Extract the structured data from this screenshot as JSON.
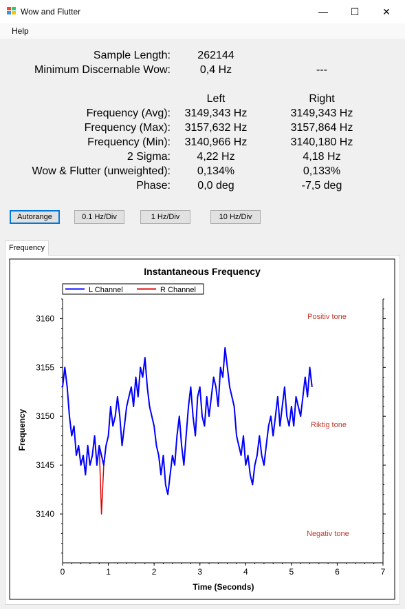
{
  "window": {
    "title": "Wow and Flutter",
    "minimize": "—",
    "maximize": "☐",
    "close": "✕"
  },
  "menu": {
    "help": "Help"
  },
  "stats": {
    "sample_length_label": "Sample Length:",
    "sample_length_value": "262144",
    "min_wow_label": "Minimum Discernable Wow:",
    "min_wow_value": "0,4 Hz",
    "min_wow_right": "---",
    "col_left": "Left",
    "col_right": "Right",
    "rows": [
      {
        "label": "Frequency (Avg):",
        "left": "3149,343 Hz",
        "right": "3149,343 Hz"
      },
      {
        "label": "Frequency (Max):",
        "left": "3157,632 Hz",
        "right": "3157,864 Hz"
      },
      {
        "label": "Frequency (Min):",
        "left": "3140,966 Hz",
        "right": "3140,180 Hz"
      },
      {
        "label": "2 Sigma:",
        "left": "4,22 Hz",
        "right": "4,18 Hz"
      },
      {
        "label": "Wow & Flutter (unweighted):",
        "left": "0,134%",
        "right": "0,133%"
      },
      {
        "label": "Phase:",
        "left": "0,0 deg",
        "right": "-7,5 deg"
      }
    ]
  },
  "buttons": {
    "autorange": "Autorange",
    "div01": "0.1 Hz/Div",
    "div1": "1 Hz/Div",
    "div10": "10 Hz/Div"
  },
  "tabs": {
    "frequency": "Frequency"
  },
  "chart_data": {
    "type": "line",
    "title": "Instantaneous Frequency",
    "xlabel": "Time (Seconds)",
    "ylabel": "Frequency",
    "xlim": [
      0,
      7
    ],
    "ylim": [
      3135,
      3162
    ],
    "x_ticks": [
      "0",
      "1",
      "2",
      "3",
      "4",
      "5",
      "6",
      "7"
    ],
    "y_ticks": [
      "3140",
      "3145",
      "3150",
      "3155",
      "3160"
    ],
    "legend_position": "top-left",
    "annotations": [
      "Positiv tone",
      "Riktig tone",
      "Negativ tone"
    ],
    "annotation_color": "#c0392b",
    "series": [
      {
        "name": "L Channel",
        "color": "#0000ff",
        "x": [
          0,
          0.05,
          0.1,
          0.15,
          0.2,
          0.25,
          0.3,
          0.35,
          0.4,
          0.45,
          0.5,
          0.55,
          0.6,
          0.65,
          0.7,
          0.75,
          0.8,
          0.85,
          0.9,
          0.95,
          1.0,
          1.05,
          1.1,
          1.15,
          1.2,
          1.25,
          1.3,
          1.35,
          1.4,
          1.45,
          1.5,
          1.55,
          1.6,
          1.65,
          1.7,
          1.75,
          1.8,
          1.85,
          1.9,
          1.95,
          2.0,
          2.05,
          2.1,
          2.15,
          2.2,
          2.25,
          2.3,
          2.35,
          2.4,
          2.45,
          2.5,
          2.55,
          2.6,
          2.65,
          2.7,
          2.75,
          2.8,
          2.85,
          2.9,
          2.95,
          3.0,
          3.05,
          3.1,
          3.15,
          3.2,
          3.25,
          3.3,
          3.35,
          3.4,
          3.45,
          3.5,
          3.55,
          3.6,
          3.65,
          3.7,
          3.75,
          3.8,
          3.85,
          3.9,
          3.95,
          4.0,
          4.05,
          4.1,
          4.15,
          4.2,
          4.25,
          4.3,
          4.35,
          4.4,
          4.45,
          4.5,
          4.55,
          4.6,
          4.65,
          4.7,
          4.75,
          4.8,
          4.85,
          4.9,
          4.95,
          5.0,
          5.05,
          5.1,
          5.15,
          5.2,
          5.25,
          5.3,
          5.35,
          5.4,
          5.45
        ],
        "y": [
          3153,
          3155,
          3153,
          3150,
          3148,
          3149,
          3146,
          3147,
          3145,
          3146,
          3144,
          3147,
          3145,
          3146,
          3148,
          3145,
          3147,
          3146,
          3145,
          3147,
          3148,
          3151,
          3149,
          3150,
          3152,
          3150,
          3147,
          3149,
          3151,
          3152,
          3153,
          3151,
          3154,
          3152,
          3155,
          3154,
          3156,
          3153,
          3151,
          3150,
          3149,
          3147,
          3146,
          3144,
          3146,
          3143,
          3142,
          3144,
          3146,
          3145,
          3148,
          3150,
          3147,
          3145,
          3148,
          3151,
          3153,
          3150,
          3148,
          3152,
          3153,
          3150,
          3149,
          3152,
          3150,
          3152,
          3154,
          3153,
          3151,
          3155,
          3154,
          3157,
          3155,
          3153,
          3152,
          3151,
          3148,
          3147,
          3146,
          3148,
          3145,
          3146,
          3144,
          3143,
          3145,
          3146,
          3148,
          3146,
          3145,
          3147,
          3149,
          3150,
          3148,
          3150,
          3152,
          3149,
          3151,
          3153,
          3150,
          3149,
          3151,
          3149,
          3152,
          3151,
          3150,
          3152,
          3154,
          3152,
          3155,
          3153
        ]
      },
      {
        "name": "R Channel",
        "color": "#dd0000",
        "x": [
          0,
          0.05,
          0.1,
          0.15,
          0.2,
          0.25,
          0.3,
          0.35,
          0.4,
          0.45,
          0.5,
          0.55,
          0.6,
          0.65,
          0.7,
          0.75,
          0.8,
          0.85,
          0.9,
          0.95,
          1.0,
          1.05,
          1.1,
          1.15,
          1.2,
          1.25,
          1.3,
          1.35,
          1.4,
          1.45,
          1.5,
          1.55,
          1.6,
          1.65,
          1.7,
          1.75,
          1.8,
          1.85,
          1.9,
          1.95,
          2.0,
          2.05,
          2.1,
          2.15,
          2.2,
          2.25,
          2.3,
          2.35,
          2.4,
          2.45,
          2.5,
          2.55,
          2.6,
          2.65,
          2.7,
          2.75,
          2.8,
          2.85,
          2.9,
          2.95,
          3.0,
          3.05,
          3.1,
          3.15,
          3.2,
          3.25,
          3.3,
          3.35,
          3.4,
          3.45,
          3.5,
          3.55,
          3.6,
          3.65,
          3.7,
          3.75,
          3.8,
          3.85,
          3.9,
          3.95,
          4.0,
          4.05,
          4.1,
          4.15,
          4.2,
          4.25,
          4.3,
          4.35,
          4.4,
          4.45,
          4.5,
          4.55,
          4.6,
          4.65,
          4.7,
          4.75,
          4.8,
          4.85,
          4.9,
          4.95,
          5.0,
          5.05,
          5.1,
          5.15,
          5.2,
          5.25,
          5.3,
          5.35,
          5.4,
          5.45
        ],
        "y": [
          3153,
          3155,
          3153,
          3150,
          3148,
          3149,
          3146,
          3147,
          3145,
          3146,
          3144,
          3147,
          3145,
          3146,
          3148,
          3145,
          3147,
          3140,
          3145,
          3147,
          3148,
          3151,
          3149,
          3150,
          3152,
          3150,
          3147,
          3149,
          3151,
          3152,
          3153,
          3151,
          3154,
          3152,
          3155,
          3154,
          3156,
          3153,
          3151,
          3150,
          3149,
          3147,
          3146,
          3144,
          3146,
          3143,
          3142,
          3144,
          3146,
          3145,
          3148,
          3150,
          3147,
          3145,
          3148,
          3151,
          3153,
          3150,
          3148,
          3152,
          3153,
          3150,
          3149,
          3152,
          3150,
          3152,
          3154,
          3153,
          3151,
          3155,
          3154,
          3157,
          3155,
          3153,
          3152,
          3151,
          3148,
          3147,
          3146,
          3148,
          3145,
          3146,
          3144,
          3143,
          3145,
          3146,
          3148,
          3146,
          3145,
          3147,
          3149,
          3150,
          3148,
          3150,
          3152,
          3149,
          3151,
          3153,
          3150,
          3149,
          3151,
          3149,
          3152,
          3151,
          3150,
          3152,
          3154,
          3152,
          3155,
          3153
        ]
      }
    ]
  }
}
